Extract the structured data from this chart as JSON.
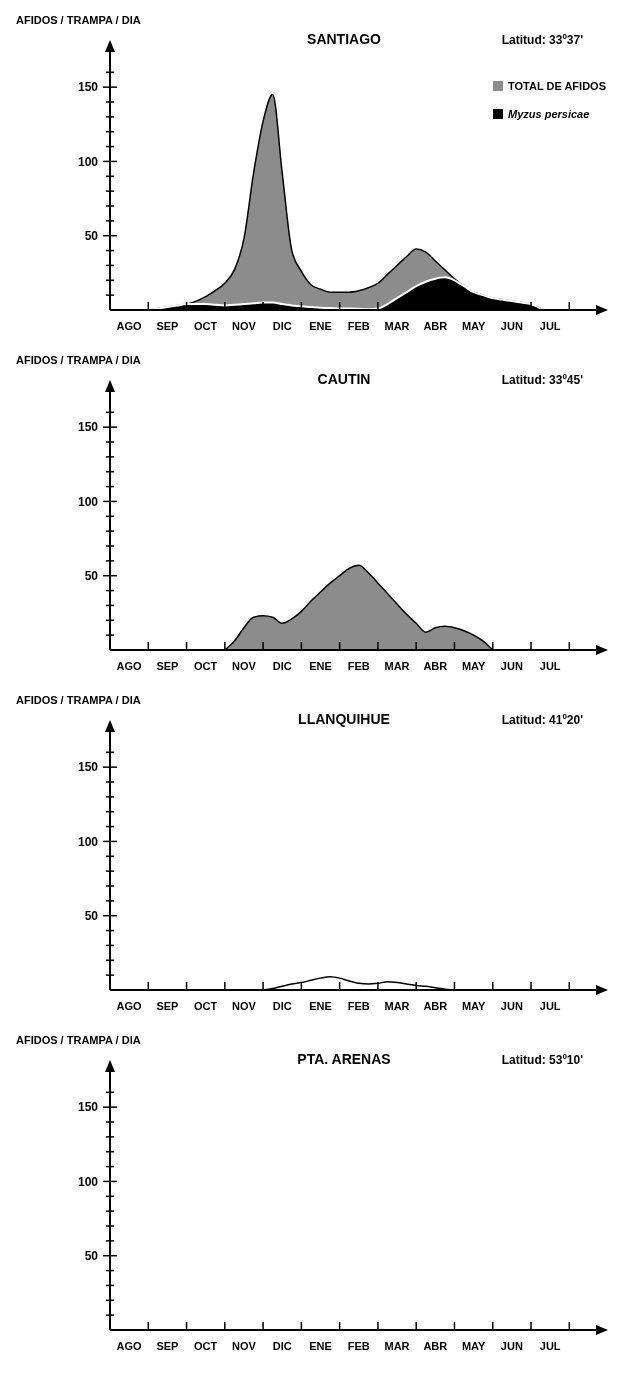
{
  "chart_data": [
    {
      "type": "area",
      "title": "SANTIAGO",
      "ylabel": "AFIDOS / TRAMPA / DIA",
      "annotations": [
        "Latitud: 33º37'"
      ],
      "legend": "top right",
      "ylim": [
        0,
        175
      ],
      "categories": [
        null,
        null,
        "AGO",
        null,
        null,
        null,
        "SEP",
        null,
        null,
        null,
        "OCT",
        null,
        null,
        null,
        "NOV",
        null,
        null,
        null,
        "DIC",
        null,
        null,
        null,
        "ENE",
        null,
        null,
        null,
        "FEB",
        null,
        null,
        null,
        "MAR",
        null,
        null,
        null,
        "ABR",
        null,
        null,
        null,
        "MAY",
        null,
        null,
        null,
        "JUN",
        null,
        null,
        null,
        "JUL",
        null,
        null
      ],
      "yticks": [
        {
          "value": 10,
          "label": null
        },
        {
          "value": 20,
          "label": null
        },
        {
          "value": 30,
          "label": null
        },
        {
          "value": 40,
          "label": null
        },
        50,
        {
          "value": 60,
          "label": null
        },
        {
          "value": 70,
          "label": null
        },
        {
          "value": 80,
          "label": null
        },
        {
          "value": 90,
          "label": null
        },
        100,
        {
          "value": 110,
          "label": null
        },
        {
          "value": 120,
          "label": null
        },
        {
          "value": 130,
          "label": null
        },
        {
          "value": 140,
          "label": null
        },
        150,
        {
          "value": 160,
          "label": null
        }
      ],
      "series": [
        {
          "name": "TOTAL DE AFIDOS",
          "color": "#8c8c8c",
          "values": [
            null,
            null,
            null,
            null,
            0,
            1,
            2,
            3,
            4,
            6,
            9,
            13,
            18,
            27,
            48,
            92,
            127,
            145,
            92,
            40,
            26,
            17,
            14,
            12,
            12,
            12,
            13,
            15,
            18,
            24,
            30,
            36,
            41,
            39,
            33,
            27,
            21,
            16,
            12,
            10,
            8,
            7,
            6,
            5,
            4,
            1,
            null,
            null,
            null
          ]
        },
        {
          "name": "Myzus persicae",
          "color": "#000000",
          "values": [
            null,
            null,
            null,
            null,
            0,
            1,
            2,
            3,
            4,
            4,
            4,
            3.5,
            3,
            3.5,
            4,
            4.5,
            5,
            5,
            4,
            3,
            2.5,
            2,
            1.5,
            1.3,
            1,
            1,
            0.8,
            0.5,
            1,
            4,
            8,
            12,
            16,
            19,
            21,
            22,
            20,
            16,
            12,
            10,
            8,
            7,
            6,
            5,
            4,
            1,
            null,
            null,
            null
          ]
        }
      ]
    },
    {
      "type": "area",
      "title": "CAUTIN",
      "ylabel": "AFIDOS / TRAMPA / DIA",
      "annotations": [
        "Latitud: 33º45'"
      ],
      "ylim": [
        0,
        175
      ],
      "categories": [
        null,
        null,
        "AGO",
        null,
        null,
        null,
        "SEP",
        null,
        null,
        null,
        "OCT",
        null,
        null,
        null,
        "NOV",
        null,
        null,
        null,
        "DIC",
        null,
        null,
        null,
        "ENE",
        null,
        null,
        null,
        "FEB",
        null,
        null,
        null,
        "MAR",
        null,
        null,
        null,
        "ABR",
        null,
        null,
        null,
        "MAY",
        null,
        null,
        null,
        "JUN",
        null,
        null,
        null,
        "JUL",
        null,
        null
      ],
      "yticks": [
        {
          "value": 10,
          "label": null
        },
        {
          "value": 20,
          "label": null
        },
        {
          "value": 30,
          "label": null
        },
        {
          "value": 40,
          "label": null
        },
        50,
        {
          "value": 60,
          "label": null
        },
        {
          "value": 70,
          "label": null
        },
        {
          "value": 80,
          "label": null
        },
        {
          "value": 90,
          "label": null
        },
        100,
        {
          "value": 110,
          "label": null
        },
        {
          "value": 120,
          "label": null
        },
        {
          "value": 130,
          "label": null
        },
        {
          "value": 140,
          "label": null
        },
        150,
        {
          "value": 160,
          "label": null
        }
      ],
      "series": [
        {
          "color": "#8c8c8c",
          "values": [
            null,
            null,
            null,
            null,
            null,
            null,
            null,
            null,
            null,
            null,
            null,
            null,
            0,
            6,
            15,
            22,
            23,
            22,
            18,
            21,
            26,
            33,
            39,
            45,
            50,
            55,
            57,
            52,
            45,
            38,
            31,
            24,
            18,
            12,
            15,
            16,
            15,
            13,
            10,
            6,
            0,
            null,
            null,
            null,
            null,
            null,
            null,
            null,
            null
          ]
        }
      ]
    },
    {
      "type": "line",
      "title": "LLANQUIHUE",
      "ylabel": "AFIDOS / TRAMPA / DIA",
      "annotations": [
        "Latitud: 41º20'"
      ],
      "ylim": [
        0,
        175
      ],
      "categories": [
        null,
        null,
        "AGO",
        null,
        null,
        null,
        "SEP",
        null,
        null,
        null,
        "OCT",
        null,
        null,
        null,
        "NOV",
        null,
        null,
        null,
        "DIC",
        null,
        null,
        null,
        "ENE",
        null,
        null,
        null,
        "FEB",
        null,
        null,
        null,
        "MAR",
        null,
        null,
        null,
        "ABR",
        null,
        null,
        null,
        "MAY",
        null,
        null,
        null,
        "JUN",
        null,
        null,
        null,
        "JUL",
        null,
        null
      ],
      "yticks": [
        {
          "value": 10,
          "label": null
        },
        {
          "value": 20,
          "label": null
        },
        {
          "value": 30,
          "label": null
        },
        {
          "value": 40,
          "label": null
        },
        50,
        {
          "value": 60,
          "label": null
        },
        {
          "value": 70,
          "label": null
        },
        {
          "value": 80,
          "label": null
        },
        {
          "value": 90,
          "label": null
        },
        100,
        {
          "value": 110,
          "label": null
        },
        {
          "value": 120,
          "label": null
        },
        {
          "value": 130,
          "label": null
        },
        {
          "value": 140,
          "label": null
        },
        150,
        {
          "value": 160,
          "label": null
        }
      ],
      "series": [
        {
          "color": "#000000",
          "values": [
            null,
            null,
            null,
            null,
            null,
            null,
            null,
            null,
            null,
            null,
            null,
            null,
            null,
            null,
            null,
            null,
            0,
            1,
            2.5,
            4,
            5,
            6.5,
            8,
            9,
            8,
            6,
            4.5,
            4,
            4.5,
            5.5,
            5,
            4,
            3,
            2.5,
            1.5,
            0.5,
            0,
            0,
            0,
            0,
            0,
            null,
            null,
            null,
            null,
            null,
            null,
            null,
            null
          ]
        }
      ]
    },
    {
      "type": "area",
      "title": "PTA. ARENAS",
      "ylabel": "AFIDOS / TRAMPA / DIA",
      "annotations": [
        "Latitud: 53º10'"
      ],
      "ylim": [
        0,
        175
      ],
      "categories": [
        null,
        null,
        "AGO",
        null,
        null,
        null,
        "SEP",
        null,
        null,
        null,
        "OCT",
        null,
        null,
        null,
        "NOV",
        null,
        null,
        null,
        "DIC",
        null,
        null,
        null,
        "ENE",
        null,
        null,
        null,
        "FEB",
        null,
        null,
        null,
        "MAR",
        null,
        null,
        null,
        "ABR",
        null,
        null,
        null,
        "MAY",
        null,
        null,
        null,
        "JUN",
        null,
        null,
        null,
        "JUL",
        null,
        null
      ],
      "yticks": [
        {
          "value": 10,
          "label": null
        },
        {
          "value": 20,
          "label": null
        },
        {
          "value": 30,
          "label": null
        },
        {
          "value": 40,
          "label": null
        },
        50,
        {
          "value": 60,
          "label": null
        },
        {
          "value": 70,
          "label": null
        },
        {
          "value": 80,
          "label": null
        },
        {
          "value": 90,
          "label": null
        },
        100,
        {
          "value": 110,
          "label": null
        },
        {
          "value": 120,
          "label": null
        },
        {
          "value": 130,
          "label": null
        },
        {
          "value": 140,
          "label": null
        },
        150,
        {
          "value": 160,
          "label": null
        }
      ]
    }
  ]
}
